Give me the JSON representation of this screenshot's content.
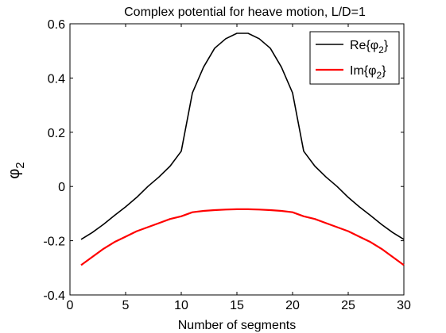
{
  "chart_data": {
    "type": "line",
    "title": "Complex potential for heave motion, L/D=1",
    "xlabel": "Number of segments",
    "ylabel": {
      "base": "φ",
      "sub": "2"
    },
    "xlim": [
      0,
      30
    ],
    "ylim": [
      -0.4,
      0.6
    ],
    "xticks": [
      0,
      5,
      10,
      15,
      20,
      25,
      30
    ],
    "xtick_labels": [
      "0",
      "5",
      "10",
      "15",
      "20",
      "25",
      "30"
    ],
    "yticks": [
      -0.4,
      -0.2,
      0,
      0.2,
      0.4,
      0.6
    ],
    "ytick_labels": [
      "-0.4",
      "-0.2",
      "0",
      "0.2",
      "0.4",
      "0.6"
    ],
    "grid": false,
    "legend_position": "top-right",
    "x": [
      1,
      2,
      3,
      4,
      5,
      6,
      7,
      8,
      9,
      10,
      11,
      12,
      13,
      14,
      15,
      16,
      17,
      18,
      19,
      20,
      21,
      22,
      23,
      24,
      25,
      26,
      27,
      28,
      29,
      30
    ],
    "series": [
      {
        "name": {
          "pre": "Re{φ",
          "sub": "2",
          "post": "}"
        },
        "color": "#000000",
        "values": [
          -0.195,
          -0.17,
          -0.14,
          -0.107,
          -0.075,
          -0.04,
          0.0,
          0.035,
          0.075,
          0.13,
          0.345,
          0.44,
          0.51,
          0.545,
          0.565,
          0.565,
          0.545,
          0.51,
          0.44,
          0.345,
          0.13,
          0.075,
          0.035,
          0.0,
          -0.04,
          -0.075,
          -0.107,
          -0.14,
          -0.17,
          -0.195
        ]
      },
      {
        "name": {
          "pre": "Im{φ",
          "sub": "2",
          "post": "}"
        },
        "color": "#ff0000",
        "values": [
          -0.29,
          -0.26,
          -0.23,
          -0.205,
          -0.185,
          -0.165,
          -0.15,
          -0.135,
          -0.12,
          -0.11,
          -0.095,
          -0.09,
          -0.087,
          -0.085,
          -0.084,
          -0.084,
          -0.085,
          -0.087,
          -0.09,
          -0.095,
          -0.11,
          -0.12,
          -0.135,
          -0.15,
          -0.165,
          -0.185,
          -0.205,
          -0.23,
          -0.26,
          -0.29
        ]
      }
    ]
  }
}
